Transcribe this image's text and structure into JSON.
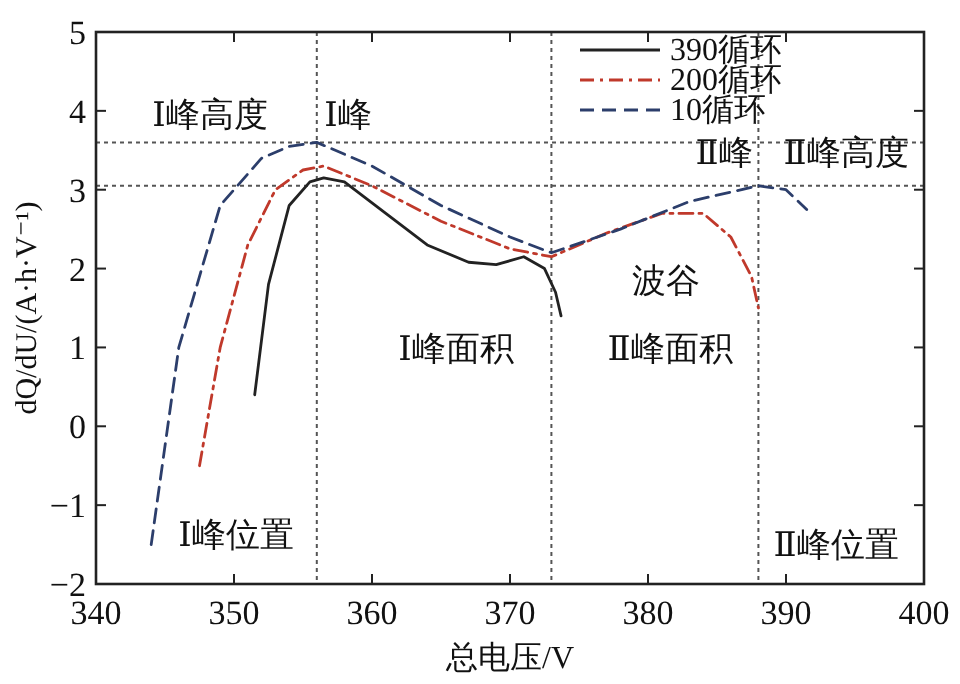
{
  "chart_data": {
    "type": "line",
    "xlabel": "总电压/V",
    "ylabel": "dQ/dU/(A·h·V⁻¹)",
    "xlim": [
      340,
      400
    ],
    "ylim": [
      -2,
      5
    ],
    "xticks": [
      340,
      350,
      360,
      370,
      380,
      390,
      400
    ],
    "yticks": [
      -2,
      -1,
      0,
      1,
      2,
      3,
      4,
      5
    ],
    "legend": "top",
    "grid": false,
    "series": [
      {
        "name": "390循环",
        "color": "#222222",
        "line_style": "solid",
        "x": [
          351.5,
          352.5,
          354,
          355.5,
          356.5,
          358,
          361,
          364,
          367,
          369,
          371,
          372.5,
          373.3,
          373.7
        ],
        "values": [
          0.4,
          1.8,
          2.8,
          3.1,
          3.15,
          3.1,
          2.7,
          2.3,
          2.08,
          2.05,
          2.15,
          2.0,
          1.7,
          1.4
        ]
      },
      {
        "name": "200循环",
        "color": "#c0392b",
        "line_style": "dashdot",
        "x": [
          347.5,
          349,
          351,
          353,
          355,
          356.5,
          360,
          365,
          370,
          373,
          377,
          381,
          384,
          386,
          387.5,
          388
        ],
        "values": [
          -0.5,
          1,
          2.3,
          3.0,
          3.25,
          3.3,
          3.05,
          2.6,
          2.25,
          2.15,
          2.45,
          2.7,
          2.7,
          2.4,
          1.9,
          1.5
        ]
      },
      {
        "name": "10循环",
        "color": "#2c3e6b",
        "line_style": "dashed",
        "x": [
          344,
          346,
          349,
          352,
          354,
          356,
          360,
          365,
          370,
          373,
          378,
          383,
          388,
          390,
          391.5
        ],
        "values": [
          -1.5,
          1,
          2.8,
          3.4,
          3.55,
          3.6,
          3.3,
          2.8,
          2.4,
          2.2,
          2.5,
          2.85,
          3.05,
          3.0,
          2.75
        ]
      }
    ],
    "ref_lines": [
      {
        "axis": "y",
        "value": 3.6,
        "color": "#555555",
        "line_style": "dotted"
      },
      {
        "axis": "x",
        "value": 356,
        "color": "#555555",
        "line_style": "dotted"
      },
      {
        "axis": "x",
        "value": 373,
        "color": "#555555",
        "line_style": "dotted"
      },
      {
        "axis": "x",
        "value": 388,
        "color": "#555555",
        "line_style": "dotted"
      },
      {
        "axis": "y",
        "value": 3.05,
        "color": "#555555",
        "line_style": "dotted"
      }
    ],
    "annotations": [
      "Ⅰ峰高度",
      "Ⅰ峰",
      "Ⅱ峰",
      "Ⅱ峰高度",
      "波谷",
      "Ⅰ峰面积",
      "Ⅱ峰面积",
      "Ⅰ峰位置",
      "Ⅱ峰位置"
    ]
  }
}
